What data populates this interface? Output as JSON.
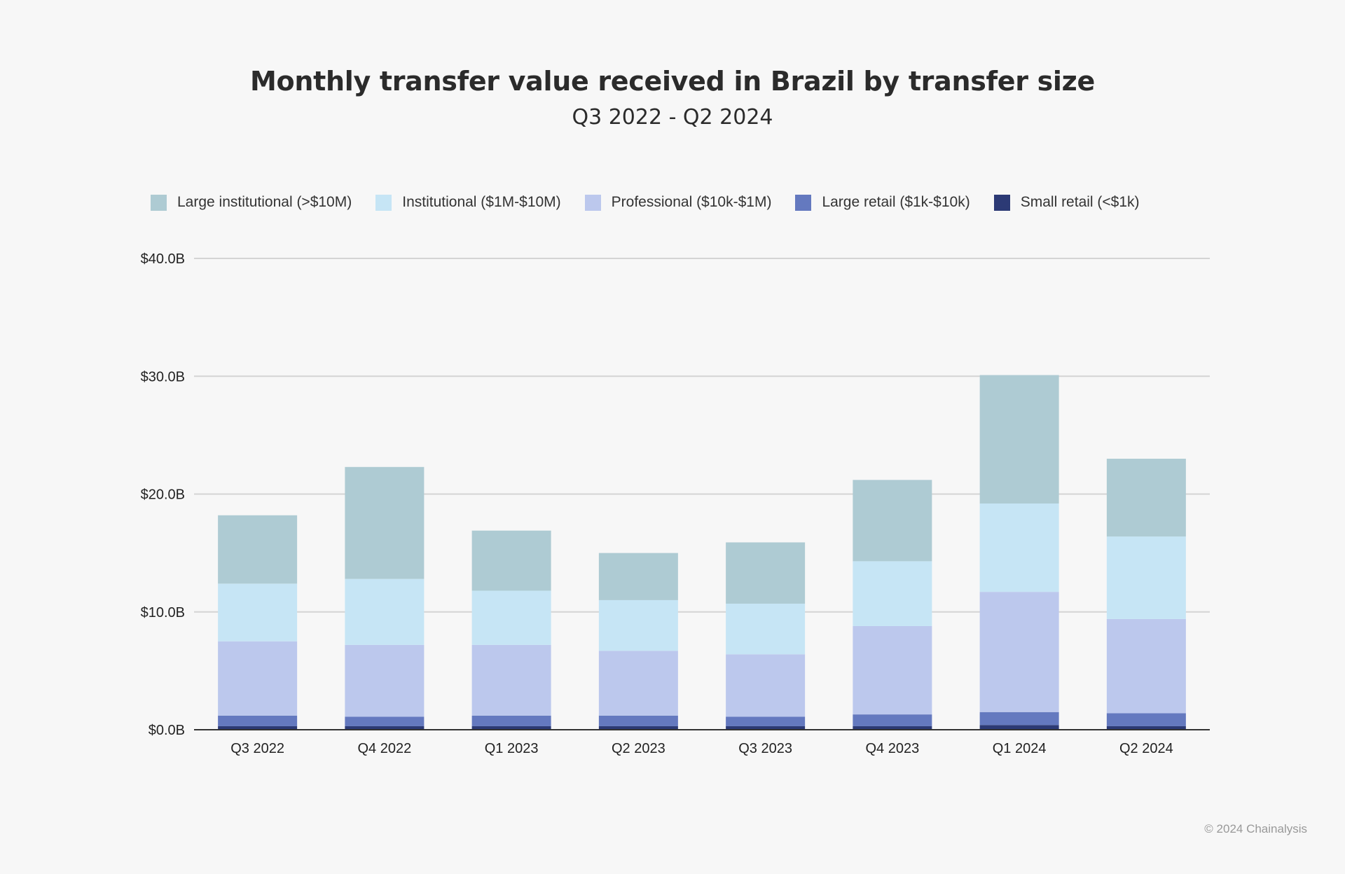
{
  "colors": {
    "background": "#f7f7f7",
    "gridline": "#d4d4d4",
    "axis": "#333333"
  },
  "chart_data": {
    "type": "bar",
    "stacked": true,
    "title": "Monthly transfer value received in Brazil by transfer size",
    "subtitle": "Q3 2022 - Q2 2024",
    "categories": [
      "Q3 2022",
      "Q4 2022",
      "Q1 2023",
      "Q2 2023",
      "Q3 2023",
      "Q4 2023",
      "Q1 2024",
      "Q2 2024"
    ],
    "ylim": [
      0,
      40
    ],
    "yticks": [
      0,
      10,
      20,
      30,
      40
    ],
    "ytick_labels": [
      "$0.0B",
      "$10.0B",
      "$20.0B",
      "$30.0B",
      "$40.0B"
    ],
    "grid": true,
    "legend_position": "top",
    "series": [
      {
        "name": "Small retail (<$1k)",
        "color": "#2c3a75",
        "values": [
          0.3,
          0.3,
          0.3,
          0.3,
          0.3,
          0.3,
          0.4,
          0.3
        ]
      },
      {
        "name": "Large retail ($1k-$10k)",
        "color": "#6479bf",
        "values": [
          0.9,
          0.8,
          0.9,
          0.9,
          0.8,
          1.0,
          1.1,
          1.1
        ]
      },
      {
        "name": "Professional ($10k-$1M)",
        "color": "#bcc8ed",
        "values": [
          6.3,
          6.1,
          6.0,
          5.5,
          5.3,
          7.5,
          10.2,
          8.0
        ]
      },
      {
        "name": "Institutional ($1M-$10M)",
        "color": "#c6e5f5",
        "values": [
          4.9,
          5.6,
          4.6,
          4.3,
          4.3,
          5.5,
          7.5,
          7.0
        ]
      },
      {
        "name": "Large institutional (>$10M)",
        "color": "#aecbd3",
        "values": [
          5.8,
          9.5,
          5.1,
          4.0,
          5.2,
          6.9,
          10.9,
          6.6
        ]
      }
    ],
    "legend_order": [
      4,
      3,
      2,
      1,
      0
    ]
  },
  "footer": {
    "copyright": "© 2024 Chainalysis"
  }
}
